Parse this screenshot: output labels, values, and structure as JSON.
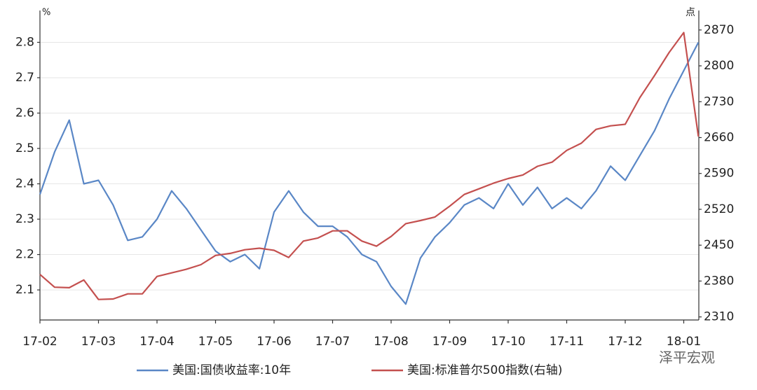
{
  "chart_data": {
    "type": "line",
    "y_unit": "%",
    "y2_unit": "点",
    "categories": [
      "17-02",
      null,
      null,
      null,
      "17-03",
      null,
      null,
      null,
      "17-04",
      null,
      null,
      null,
      "17-05",
      null,
      null,
      null,
      "17-06",
      null,
      null,
      null,
      "17-07",
      null,
      null,
      null,
      "17-08",
      null,
      null,
      null,
      "17-09",
      null,
      null,
      null,
      "17-10",
      null,
      null,
      null,
      "17-11",
      null,
      null,
      null,
      "17-12",
      null,
      null,
      null,
      "18-01",
      null
    ],
    "series": [
      {
        "name": "美国:国债收益率:10年",
        "color": "#5a87c6",
        "axis": "y",
        "values": [
          2.37,
          2.49,
          2.58,
          2.4,
          2.41,
          2.34,
          2.24,
          2.25,
          2.3,
          2.38,
          2.33,
          2.27,
          2.21,
          2.18,
          2.2,
          2.16,
          2.32,
          2.38,
          2.32,
          2.28,
          2.28,
          2.25,
          2.2,
          2.18,
          2.11,
          2.06,
          2.19,
          2.25,
          2.29,
          2.34,
          2.36,
          2.33,
          2.4,
          2.34,
          2.39,
          2.33,
          2.36,
          2.33,
          2.38,
          2.45,
          2.41,
          2.48,
          2.55,
          2.64,
          2.72,
          2.8
        ]
      },
      {
        "name": "美国:标准普尔500指数(右轴)",
        "color": "#c4504f",
        "axis": "y2",
        "values": [
          2393,
          2368,
          2367,
          2382,
          2344,
          2345,
          2355,
          2355,
          2389,
          2396,
          2403,
          2412,
          2430,
          2434,
          2441,
          2444,
          2440,
          2426,
          2458,
          2464,
          2478,
          2478,
          2458,
          2448,
          2467,
          2492,
          2498,
          2505,
          2526,
          2549,
          2560,
          2571,
          2580,
          2587,
          2604,
          2612,
          2635,
          2649,
          2676,
          2683,
          2686,
          2738,
          2781,
          2826,
          2865,
          2662
        ]
      }
    ],
    "ylim": [
      2.015,
      2.89
    ],
    "yticks": [
      2.1,
      2.2,
      2.3,
      2.4,
      2.5,
      2.6,
      2.7,
      2.8
    ],
    "y2lim": [
      2304,
      2908
    ],
    "y2ticks": [
      2310,
      2380,
      2450,
      2520,
      2590,
      2660,
      2730,
      2800,
      2870
    ],
    "grid": true,
    "legend": "bottom",
    "watermark": "泽平宏观"
  }
}
